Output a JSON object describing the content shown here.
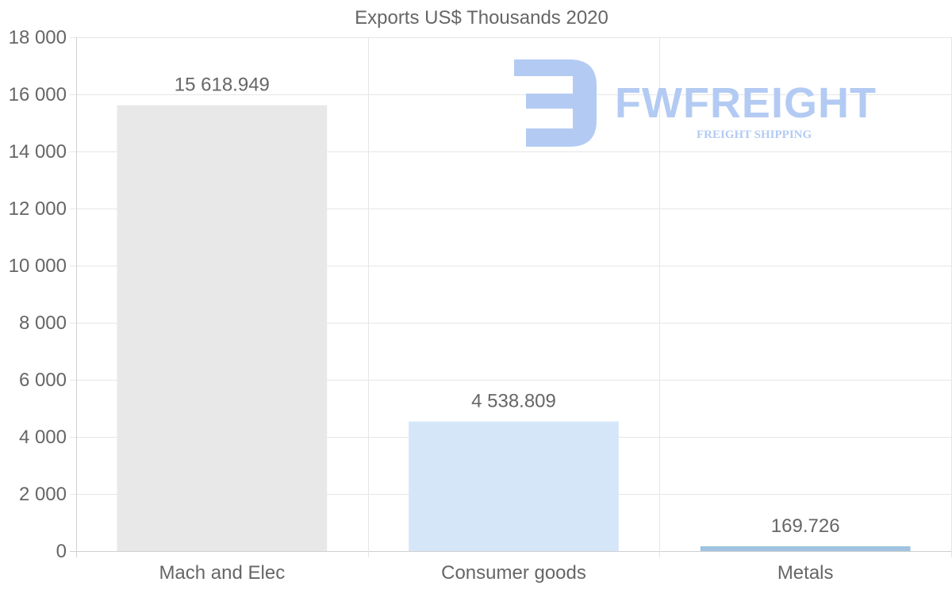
{
  "chart_data": {
    "type": "bar",
    "title": "Exports US$ Thousands 2020",
    "categories": [
      "Mach and Elec",
      "Consumer goods",
      "Metals"
    ],
    "values": [
      15618.949,
      4538.809,
      169.726
    ],
    "value_labels": [
      "15 618.949",
      "4 538.809",
      "169.726"
    ],
    "bar_colors": [
      "#e8e8e8",
      "#d6e6f9",
      "#9fc3e0"
    ],
    "ylim": [
      0,
      18000
    ],
    "yticks": [
      0,
      2000,
      4000,
      6000,
      8000,
      10000,
      12000,
      14000,
      16000,
      18000
    ],
    "ytick_labels": [
      "0",
      "2 000",
      "4 000",
      "6 000",
      "8 000",
      "10 000",
      "12 000",
      "14 000",
      "16 000",
      "18 000"
    ],
    "xlabel": "",
    "ylabel": "",
    "grid": true,
    "legend": "none"
  },
  "watermark": {
    "brand": "FWFREIGHT",
    "tagline": "FREIGHT SHIPPING",
    "color": "#b3cbf3"
  }
}
